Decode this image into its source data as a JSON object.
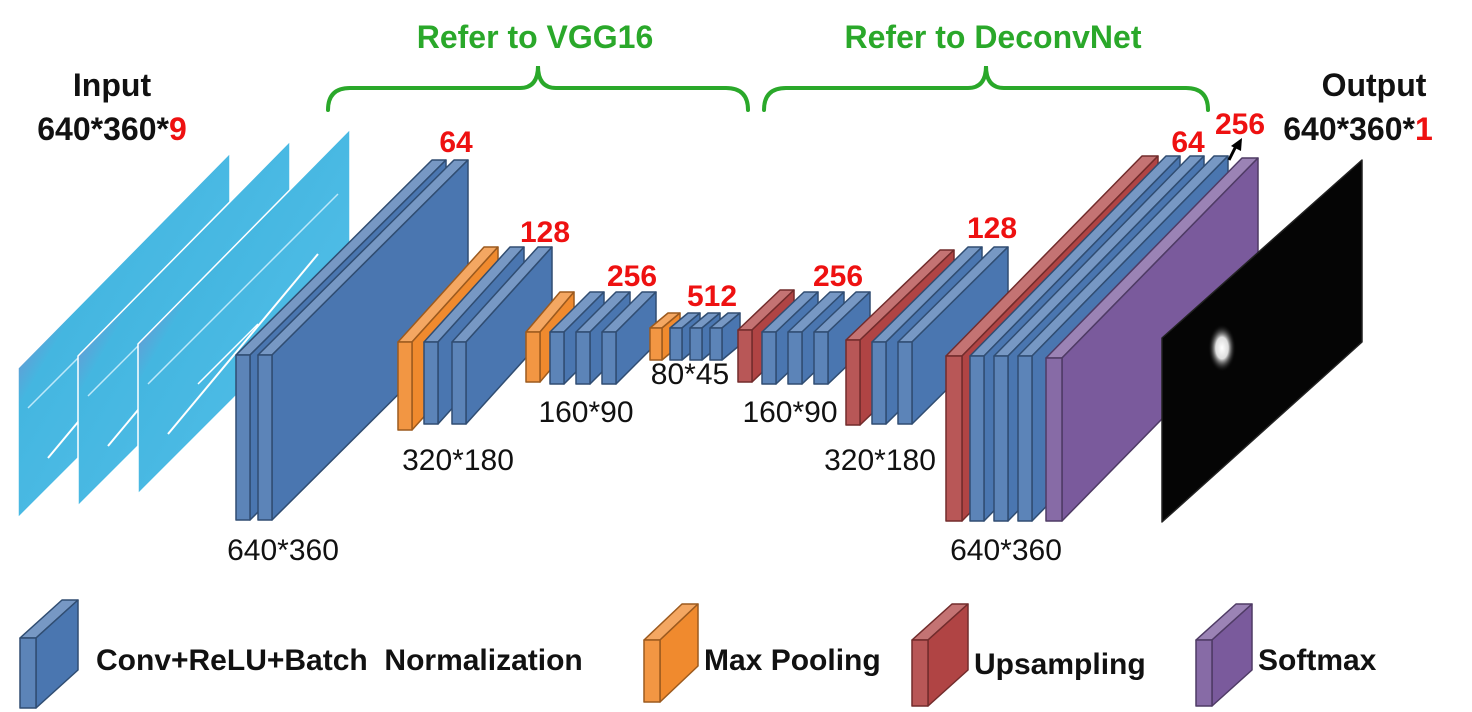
{
  "input_label": {
    "line1": "Input",
    "dims_prefix": "640*360*",
    "dims_highlight": "9"
  },
  "output_label": {
    "line1": "Output",
    "dims_prefix": "640*360*",
    "dims_highlight": "1"
  },
  "brace_vgg_label": "Refer to VGG16",
  "brace_deconv_label": "Refer to DeconvNet",
  "channels": {
    "c64_a": "64",
    "c128_a": "128",
    "c256_a": "256",
    "c512": "512",
    "c256_b": "256",
    "c128_b": "128",
    "c64_b": "64",
    "c256_c": "256"
  },
  "sizes": {
    "s640_a": "640*360",
    "s320_a": "320*180",
    "s160_a": "160*90",
    "s80": "80*45",
    "s160_b": "160*90",
    "s320_b": "320*180",
    "s640_b": "640*360"
  },
  "legend": {
    "conv": "Conv+ReLU+Batch  Normalization",
    "pool": "Max Pooling",
    "up": "Upsampling",
    "softmax": "Softmax"
  },
  "colors": {
    "conv": "#4a76b0",
    "pool": "#f08a2e",
    "up": "#b04444",
    "softmax": "#7a5a9c",
    "brace": "#2aa82a",
    "highlight": "#ee1111"
  }
}
